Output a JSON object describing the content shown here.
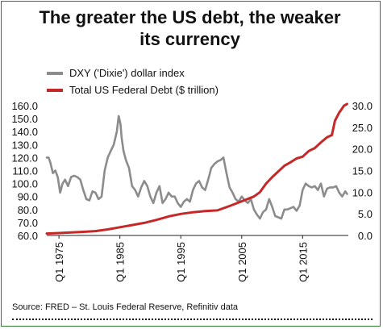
{
  "title_line1": "The greater the US debt, the weaker",
  "title_line2": "its currency",
  "source": "Source: FRED – St. Louis Federal Reserve, Refinitiv data",
  "colors": {
    "dxy": "#8c8c8c",
    "debt": "#c62828",
    "border": "#2e7d32"
  },
  "chart_data": {
    "type": "line",
    "legend_position": "top-left",
    "grid": false,
    "x_tick_labels": [
      "Q1 1975",
      "Q1 1985",
      "Q1 1995",
      "Q1 2005",
      "Q1 2015"
    ],
    "x_tick_years": [
      1975,
      1985,
      1995,
      2005,
      2015
    ],
    "x_range": [
      1973,
      2022.5
    ],
    "y_left": {
      "range": [
        60,
        160
      ],
      "ticks": [
        "60.0",
        "70.0",
        "80.0",
        "90.0",
        "100.0",
        "110.0",
        "120.0",
        "130.0",
        "140.0",
        "150.0",
        "160.0"
      ]
    },
    "y_right": {
      "range": [
        0,
        30
      ],
      "ticks": [
        "0.0",
        "5.0",
        "10.0",
        "15.0",
        "20.0",
        "25.0",
        "30.0"
      ]
    },
    "series": [
      {
        "name": "DXY ('Dixie') dollar index",
        "axis": "left",
        "x": [
          1973.0,
          1973.3,
          1973.6,
          1974.0,
          1974.4,
          1974.8,
          1975.2,
          1975.6,
          1976.0,
          1976.5,
          1977.0,
          1977.5,
          1978.0,
          1978.5,
          1979.0,
          1979.5,
          1980.0,
          1980.5,
          1981.0,
          1981.5,
          1982.0,
          1982.5,
          1983.0,
          1983.5,
          1984.0,
          1984.5,
          1984.8,
          1985.1,
          1985.3,
          1985.6,
          1986.0,
          1986.5,
          1987.0,
          1987.5,
          1988.0,
          1988.5,
          1989.0,
          1989.5,
          1990.0,
          1990.5,
          1991.0,
          1991.5,
          1992.0,
          1992.5,
          1993.0,
          1993.5,
          1994.0,
          1994.5,
          1995.0,
          1995.5,
          1996.0,
          1996.5,
          1997.0,
          1997.5,
          1998.0,
          1998.5,
          1999.0,
          1999.5,
          2000.0,
          2000.5,
          2001.0,
          2001.5,
          2002.0,
          2002.5,
          2003.0,
          2003.5,
          2004.0,
          2004.5,
          2005.0,
          2005.5,
          2006.0,
          2006.5,
          2007.0,
          2007.5,
          2008.0,
          2008.5,
          2009.0,
          2009.5,
          2010.0,
          2010.5,
          2011.0,
          2011.5,
          2012.0,
          2012.5,
          2013.0,
          2013.5,
          2014.0,
          2014.5,
          2015.0,
          2015.5,
          2016.0,
          2016.5,
          2017.0,
          2017.5,
          2018.0,
          2018.5,
          2019.0,
          2019.5,
          2020.0,
          2020.5,
          2021.0,
          2021.5,
          2022.0,
          2022.3
        ],
        "values": [
          120,
          120,
          116,
          108,
          110,
          105,
          93,
          100,
          103,
          98,
          105,
          106,
          105,
          103,
          95,
          88,
          87,
          94,
          93,
          88,
          90,
          110,
          120,
          125,
          130,
          140,
          152,
          146,
          135,
          125,
          118,
          112,
          98,
          95,
          90,
          97,
          102,
          98,
          90,
          85,
          93,
          98,
          85,
          88,
          93,
          90,
          90,
          85,
          82,
          86,
          88,
          86,
          95,
          100,
          102,
          97,
          95,
          103,
          112,
          115,
          117,
          118,
          120,
          108,
          97,
          93,
          88,
          86,
          90,
          87,
          85,
          88,
          80,
          76,
          73,
          78,
          80,
          88,
          82,
          75,
          74,
          73,
          80,
          80,
          81,
          82,
          79,
          83,
          95,
          100,
          98,
          97,
          98,
          95,
          100,
          90,
          96,
          97,
          97,
          98,
          93,
          90,
          94,
          92
        ]
      },
      {
        "name": "Total US Federal Debt ($ trillion)",
        "axis": "right",
        "x": [
          1973,
          1975,
          1977,
          1979,
          1981,
          1983,
          1985,
          1987,
          1989,
          1991,
          1993,
          1995,
          1997,
          1999,
          2001,
          2003,
          2005,
          2007,
          2008,
          2009,
          2010,
          2011,
          2012,
          2013,
          2014,
          2015,
          2016,
          2017,
          2018,
          2019,
          2019.8,
          2020.3,
          2021,
          2021.8,
          2022.3
        ],
        "values": [
          0.45,
          0.55,
          0.7,
          0.83,
          1.0,
          1.4,
          1.9,
          2.4,
          2.9,
          3.6,
          4.4,
          4.97,
          5.37,
          5.65,
          5.8,
          6.8,
          7.9,
          9.0,
          10.0,
          12.0,
          13.5,
          14.8,
          16.1,
          16.9,
          17.8,
          18.2,
          19.5,
          20.2,
          21.5,
          22.7,
          23.2,
          26.5,
          28.4,
          30.0,
          30.4
        ]
      }
    ]
  }
}
